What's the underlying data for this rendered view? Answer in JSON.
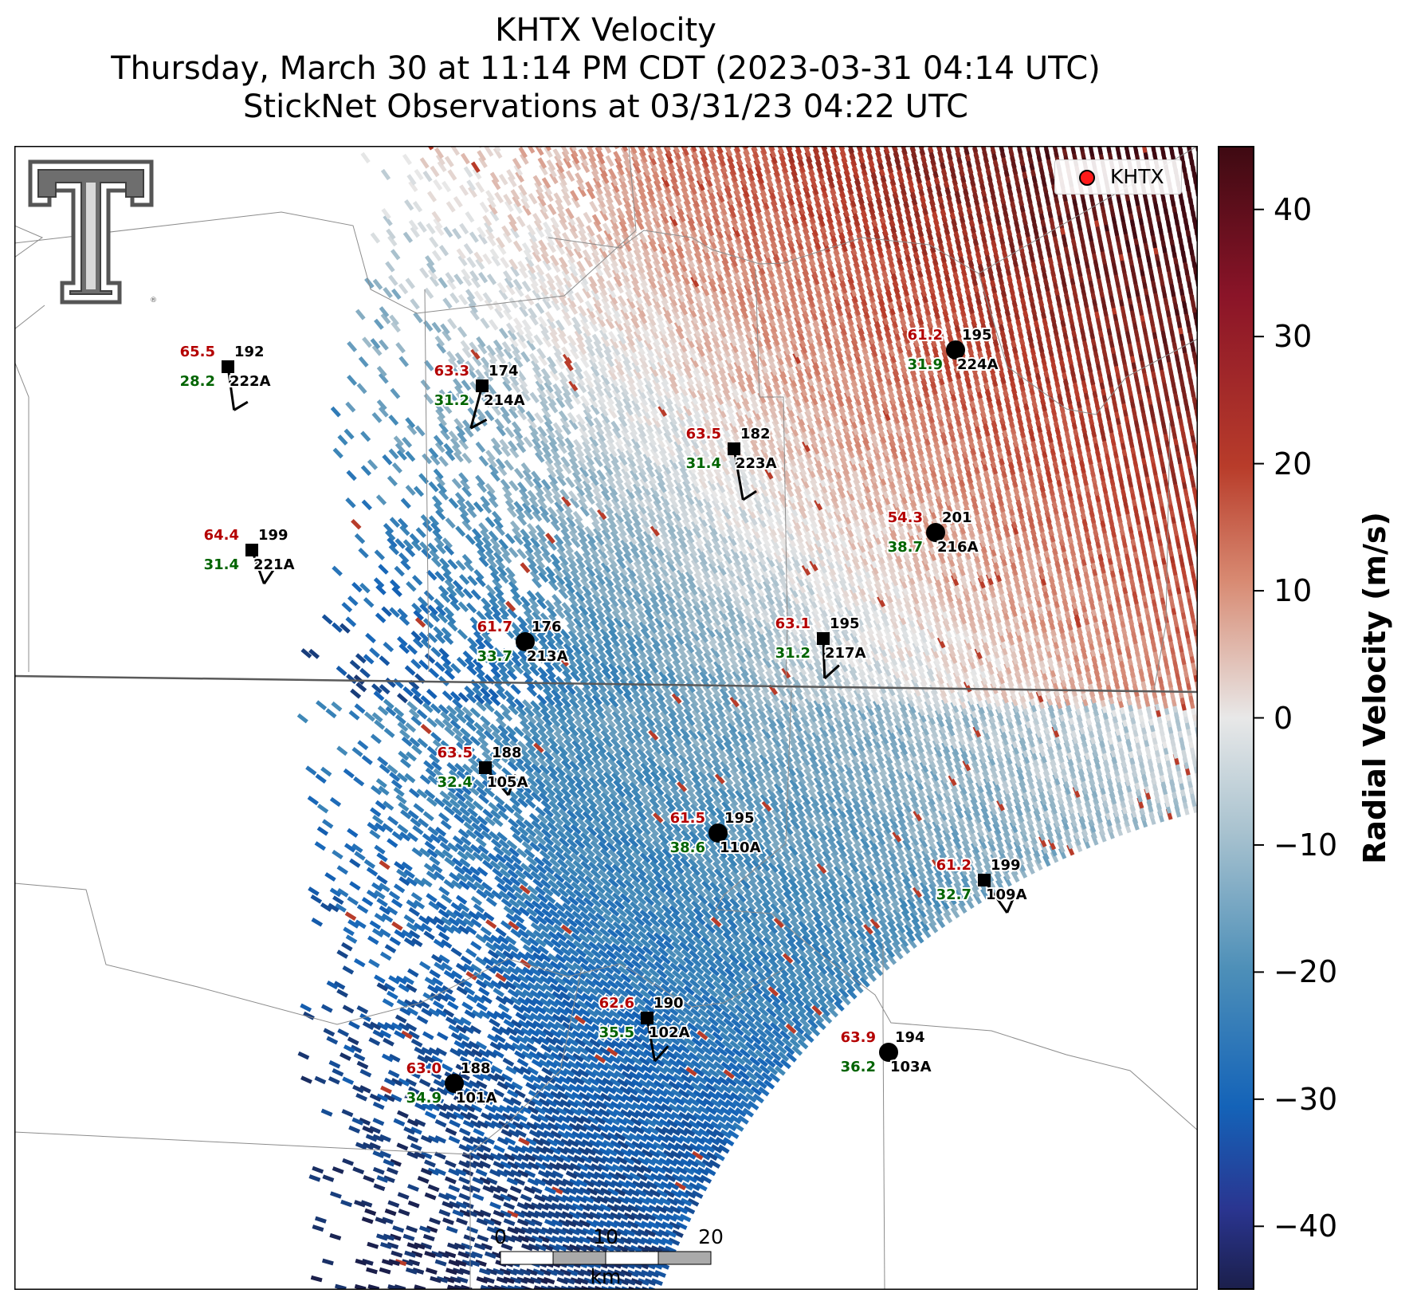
{
  "title": {
    "line1": "KHTX Velocity",
    "line2": "Thursday, March 30 at 11:14 PM CDT (2023-03-31 04:14 UTC)",
    "line3": "StickNet Observations at 03/31/23 04:22 UTC"
  },
  "legend": {
    "label": "KHTX",
    "marker_color": "#ff1a1a"
  },
  "colorbar": {
    "label": "Radial Velocity (m/s)",
    "min": -45,
    "max": 45,
    "ticks": [
      "40",
      "30",
      "20",
      "10",
      "0",
      "−10",
      "−20",
      "−30",
      "−40"
    ],
    "colors": {
      "low": "#1b1f4b",
      "blue": "#1463b8",
      "gray": "#e6e6e6",
      "red": "#b83c2a",
      "high": "#3e0a12"
    }
  },
  "scalebar": {
    "labels": [
      "0",
      "10",
      "20"
    ],
    "unit": "km"
  },
  "logo": "texas-tech-double-t-logo",
  "stations": [
    {
      "id": "222A",
      "temp": "65.5",
      "dir": "192",
      "dew": "28.2",
      "marker": "square"
    },
    {
      "id": "214A",
      "temp": "63.3",
      "dir": "174",
      "dew": "31.2",
      "marker": "square"
    },
    {
      "id": "221A",
      "temp": "64.4",
      "dir": "199",
      "dew": "31.4",
      "marker": "square"
    },
    {
      "id": "223A",
      "temp": "63.5",
      "dir": "182",
      "dew": "31.4",
      "marker": "square"
    },
    {
      "id": "224A",
      "temp": "61.2",
      "dir": "195",
      "dew": "31.9",
      "marker": "circle"
    },
    {
      "id": "216A",
      "temp": "54.3",
      "dir": "201",
      "dew": "38.7",
      "marker": "circle"
    },
    {
      "id": "213A",
      "temp": "61.7",
      "dir": "176",
      "dew": "33.7",
      "marker": "circle"
    },
    {
      "id": "217A",
      "temp": "63.1",
      "dir": "195",
      "dew": "31.2",
      "marker": "square"
    },
    {
      "id": "105A",
      "temp": "63.5",
      "dir": "188",
      "dew": "32.4",
      "marker": "square"
    },
    {
      "id": "110A",
      "temp": "61.5",
      "dir": "195",
      "dew": "38.6",
      "marker": "circle"
    },
    {
      "id": "109A",
      "temp": "61.2",
      "dir": "199",
      "dew": "32.7",
      "marker": "square"
    },
    {
      "id": "102A",
      "temp": "62.6",
      "dir": "190",
      "dew": "35.5",
      "marker": "square"
    },
    {
      "id": "103A",
      "temp": "63.9",
      "dir": "194",
      "dew": "36.2",
      "marker": "circle"
    },
    {
      "id": "101A",
      "temp": "63.0",
      "dir": "188",
      "dew": "34.9",
      "marker": "circle"
    }
  ]
}
